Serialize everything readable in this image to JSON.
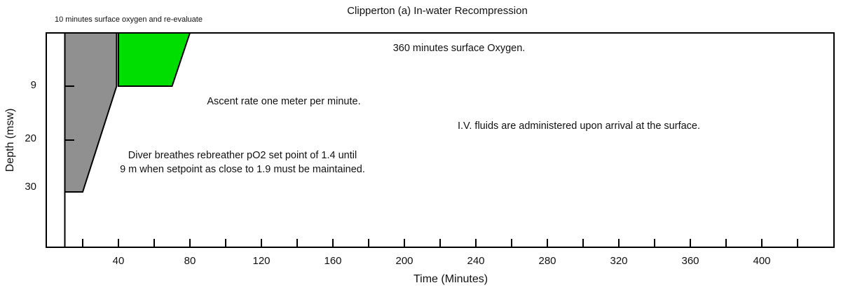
{
  "figure": {
    "title": "Clipperton (a) In-water Recompression",
    "x_axis_label": "Time (Minutes)",
    "y_axis_label": "Depth (msw)"
  },
  "annotations": {
    "surface_oxygen_10min": "10 minutes surface oxygen and re-evaluate",
    "surface_oxygen_360min": "360 minutes surface Oxygen.",
    "ascent_rate": "Ascent rate one meter per minute.",
    "iv_fluids": "I.V. fluids are administered upon arrival at the surface.",
    "rebreather_line1": "Diver breathes rebreather pO2 set point of 1.4 until",
    "rebreather_line2": "9 m when setpoint as close to 1.9 must be maintained."
  },
  "colors": {
    "background": "#ffffff",
    "axis_line": "#000000",
    "text": "#111111",
    "rebreather_fill": "#909090",
    "oxygen_fill": "#00dd00"
  },
  "chart_data": {
    "type": "area",
    "title": "Clipperton (a) In-water Recompression",
    "xlabel": "Time (Minutes)",
    "ylabel": "Depth (msw)",
    "xlim": [
      0,
      440
    ],
    "ylim_depth": [
      0,
      40
    ],
    "grid": false,
    "legend": false,
    "x_tick_minor_interval": 20,
    "x_tick_minor_range": [
      20,
      420
    ],
    "x_tick_label_values": [
      40,
      80,
      120,
      160,
      200,
      240,
      280,
      320,
      360,
      400
    ],
    "y_ticks": [
      {
        "label": "9",
        "depth": 9,
        "tick_mark": true
      },
      {
        "label": "20",
        "depth": 20,
        "tick_mark": true
      },
      {
        "label": "30",
        "depth": 30,
        "tick_mark": false
      }
    ],
    "surface_interval_line_minutes": 10,
    "regions": [
      {
        "name": "rebreather-descent-phase",
        "fill": "#909090",
        "outline": "#000000",
        "points_time_depth": [
          [
            10,
            0
          ],
          [
            39,
            0
          ],
          [
            39,
            9
          ],
          [
            20,
            30
          ],
          [
            10,
            30
          ]
        ]
      },
      {
        "name": "oxygen-9m-phase",
        "fill": "#00dd00",
        "outline": "#000000",
        "points_time_depth": [
          [
            40,
            0
          ],
          [
            80,
            0
          ],
          [
            70,
            9
          ],
          [
            40,
            9
          ]
        ]
      }
    ]
  }
}
